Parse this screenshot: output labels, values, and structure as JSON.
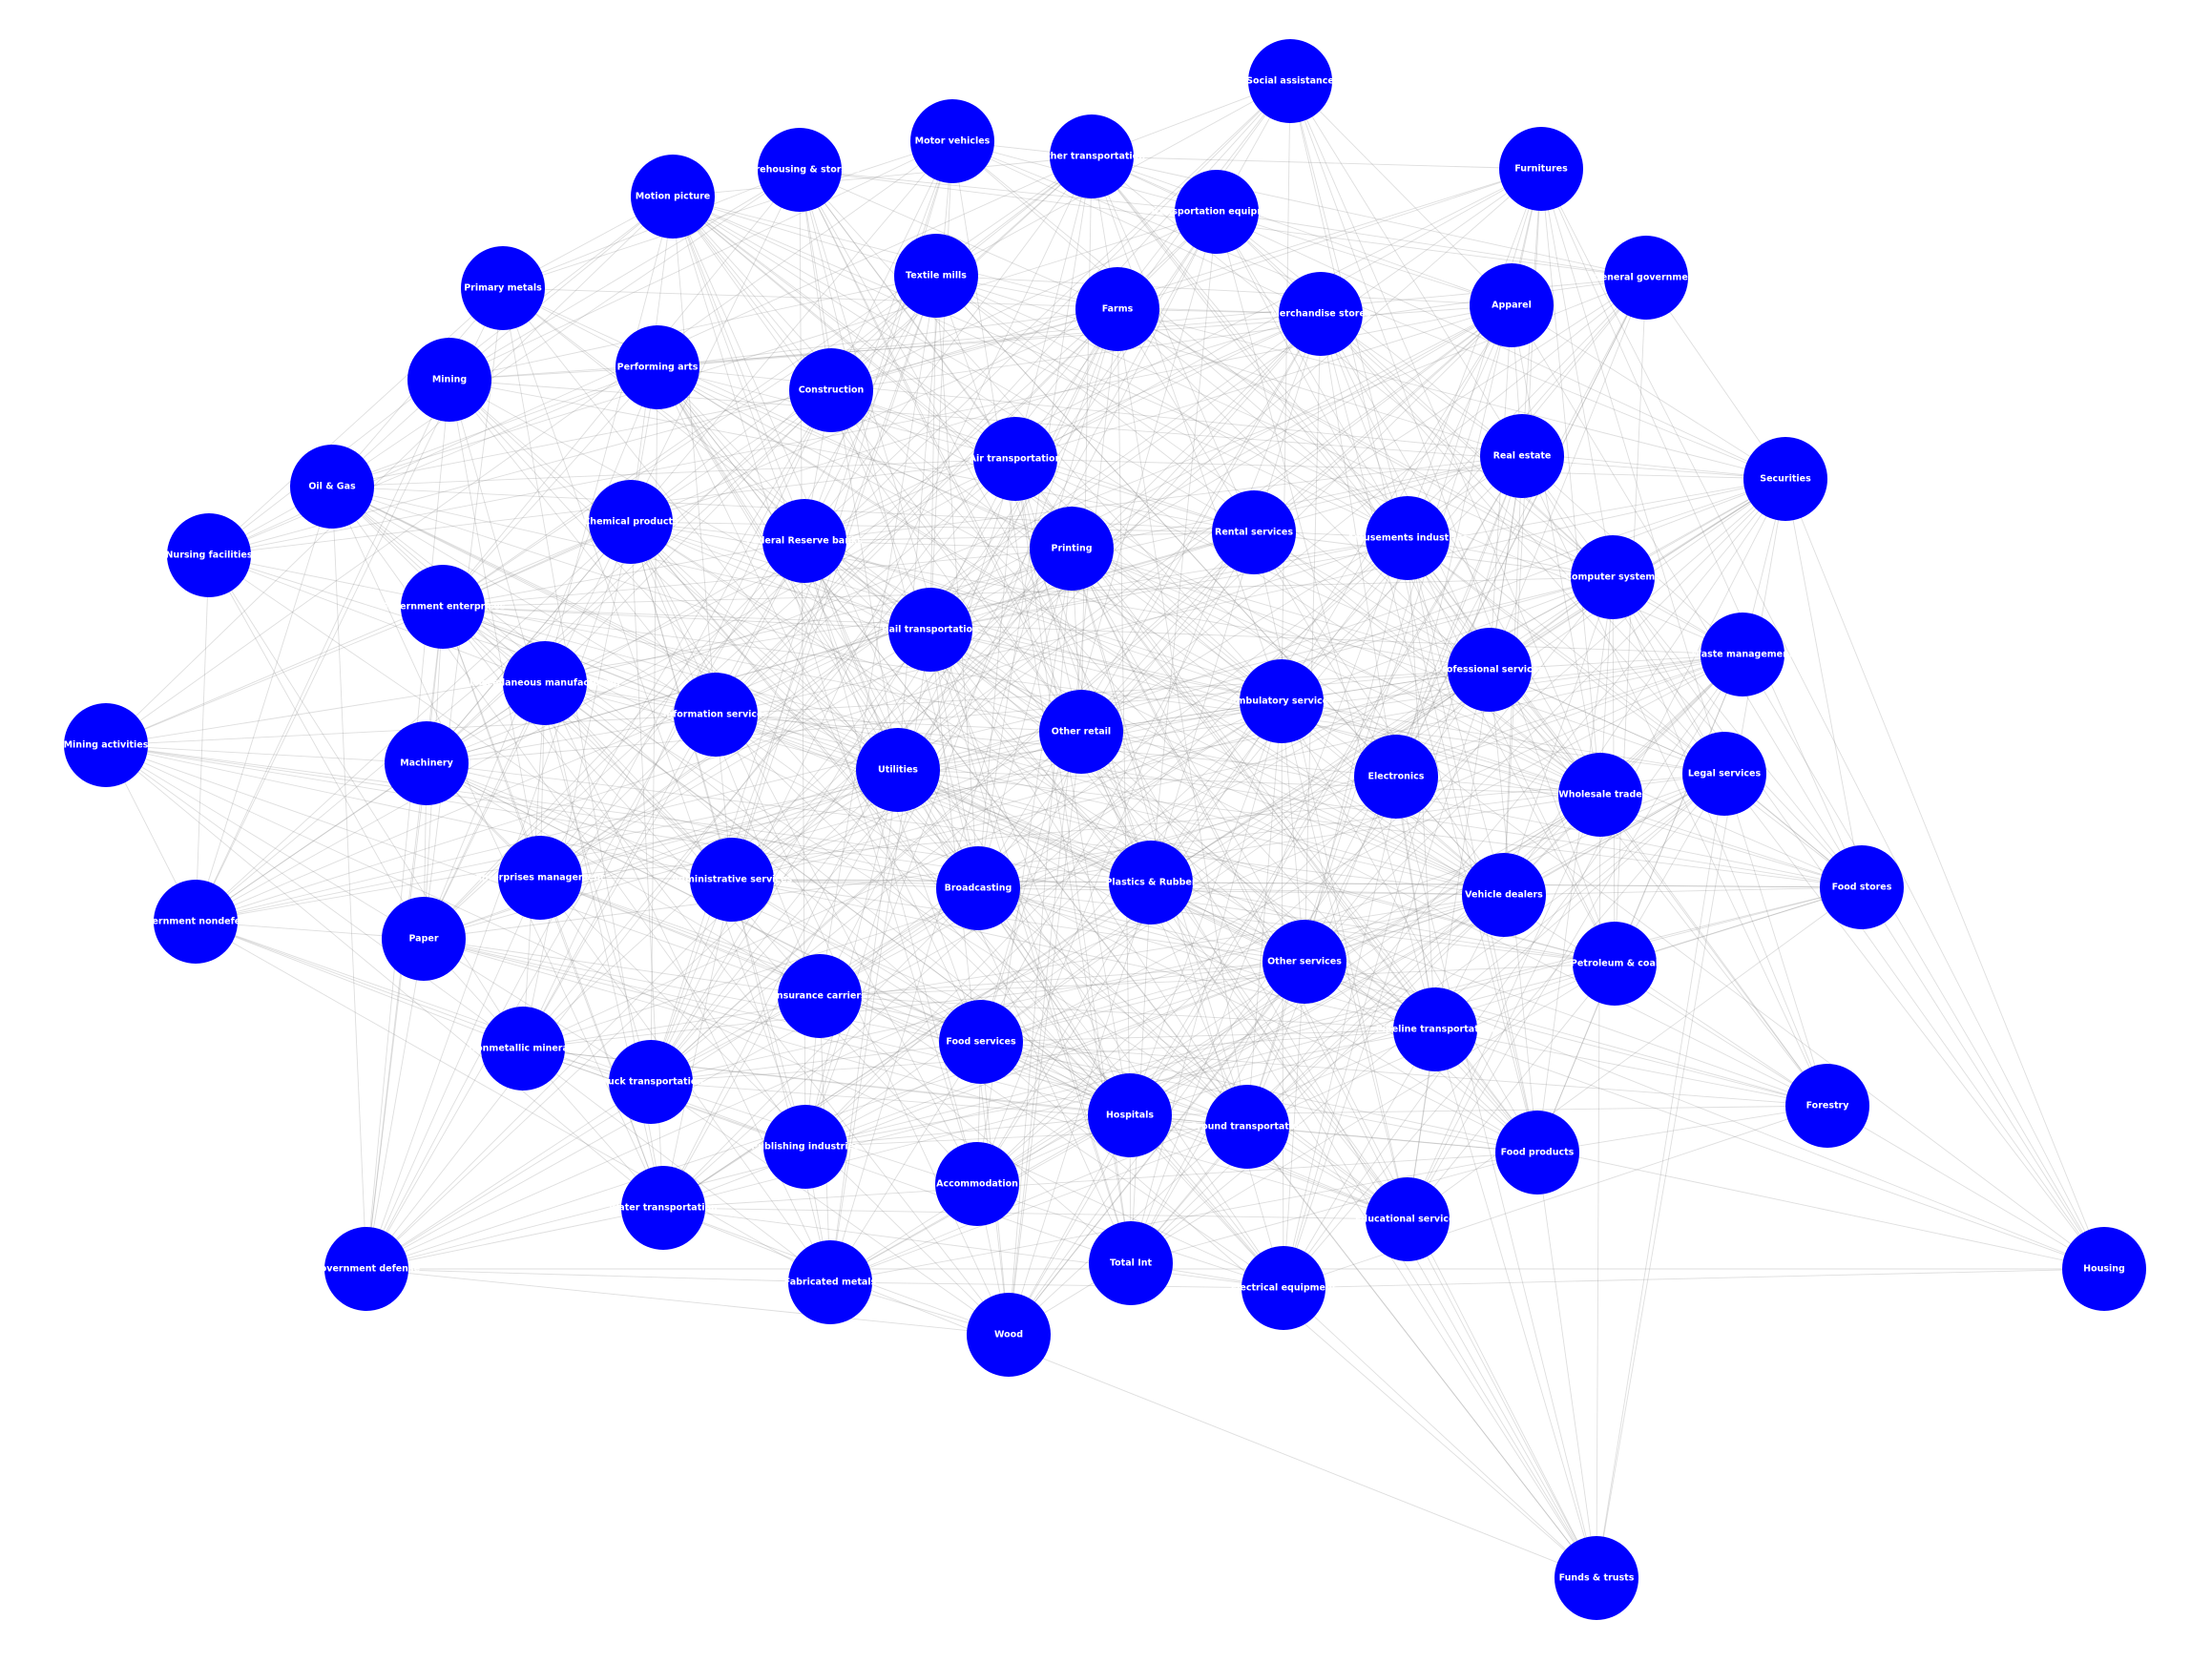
{
  "colors": {
    "node": "#0000ff",
    "label": "#ffffff",
    "edge": "#8a8a8a",
    "background": "#ffffff"
  },
  "nodes": [
    {
      "id": "social-assistance",
      "label": "Social assistance"
    },
    {
      "id": "motor-vehicles",
      "label": "Motor vehicles"
    },
    {
      "id": "other-transportation",
      "label": "Other transportation"
    },
    {
      "id": "warehousing-storage",
      "label": "Warehousing & storage"
    },
    {
      "id": "furnitures",
      "label": "Furnitures"
    },
    {
      "id": "motion-picture",
      "label": "Motion picture"
    },
    {
      "id": "transportation-equipment",
      "label": "Transportation equipment"
    },
    {
      "id": "textile-mills",
      "label": "Textile mills"
    },
    {
      "id": "general-government",
      "label": "General government"
    },
    {
      "id": "primary-metals",
      "label": "Primary metals"
    },
    {
      "id": "farms",
      "label": "Farms"
    },
    {
      "id": "merchandise-stores",
      "label": "Merchandise stores"
    },
    {
      "id": "apparel",
      "label": "Apparel"
    },
    {
      "id": "performing-arts",
      "label": "Performing arts"
    },
    {
      "id": "mining",
      "label": "Mining"
    },
    {
      "id": "construction",
      "label": "Construction"
    },
    {
      "id": "real-estate",
      "label": "Real estate"
    },
    {
      "id": "air-transportation",
      "label": "Air transportation"
    },
    {
      "id": "securities",
      "label": "Securities"
    },
    {
      "id": "oil-gas",
      "label": "Oil & Gas"
    },
    {
      "id": "chemical-products",
      "label": "Chemical products"
    },
    {
      "id": "federal-reserve-banks",
      "label": "Federal Reserve banks"
    },
    {
      "id": "printing",
      "label": "Printing"
    },
    {
      "id": "rental-services",
      "label": "Rental services"
    },
    {
      "id": "amusements-industries",
      "label": "Amusements industries"
    },
    {
      "id": "nursing-facilities",
      "label": "Nursing facilities"
    },
    {
      "id": "computer-systems",
      "label": "Computer systems"
    },
    {
      "id": "government-enterprises",
      "label": "Government enterprises"
    },
    {
      "id": "rail-transportation",
      "label": "Rail transportation"
    },
    {
      "id": "waste-management",
      "label": "Waste management"
    },
    {
      "id": "professional-services",
      "label": "Professional services"
    },
    {
      "id": "miscellaneous-manufacturing",
      "label": "Miscellaneous manufacturing"
    },
    {
      "id": "ambulatory-services",
      "label": "Ambulatory services"
    },
    {
      "id": "information-services",
      "label": "Information services"
    },
    {
      "id": "mining-activities",
      "label": "Mining activities"
    },
    {
      "id": "other-retail",
      "label": "Other retail"
    },
    {
      "id": "machinery",
      "label": "Machinery"
    },
    {
      "id": "utilities",
      "label": "Utilities"
    },
    {
      "id": "electronics",
      "label": "Electronics"
    },
    {
      "id": "legal-services",
      "label": "Legal services"
    },
    {
      "id": "wholesale-trade",
      "label": "Wholesale trade"
    },
    {
      "id": "enterprises-management",
      "label": "Enterprises management"
    },
    {
      "id": "administrative-services",
      "label": "Administrative services"
    },
    {
      "id": "plastics-rubber",
      "label": "Plastics & Rubber"
    },
    {
      "id": "broadcasting",
      "label": "Broadcasting"
    },
    {
      "id": "vehicle-dealers",
      "label": "Vehicle dealers"
    },
    {
      "id": "food-stores",
      "label": "Food stores"
    },
    {
      "id": "government-nondefense",
      "label": "Government nondefense"
    },
    {
      "id": "paper",
      "label": "Paper"
    },
    {
      "id": "other-services",
      "label": "Other services"
    },
    {
      "id": "petroleum-coal",
      "label": "Petroleum & coal"
    },
    {
      "id": "insurance-carriers",
      "label": "Insurance carriers"
    },
    {
      "id": "pipeline-transportation",
      "label": "Pipeline transportation"
    },
    {
      "id": "nonmetallic-minerals",
      "label": "Nonmetallic minerals"
    },
    {
      "id": "food-services",
      "label": "Food services"
    },
    {
      "id": "truck-transportation",
      "label": "Truck transportation"
    },
    {
      "id": "hospitals",
      "label": "Hospitals"
    },
    {
      "id": "forestry",
      "label": "Forestry"
    },
    {
      "id": "ground-transportation",
      "label": "Ground transportation"
    },
    {
      "id": "publishing-industries",
      "label": "Publishing industries"
    },
    {
      "id": "food-products",
      "label": "Food products"
    },
    {
      "id": "accommodation",
      "label": "Accommodation"
    },
    {
      "id": "water-transportation",
      "label": "Water transportation"
    },
    {
      "id": "educational-services",
      "label": "Educational services"
    },
    {
      "id": "government-defense",
      "label": "Government defense"
    },
    {
      "id": "total-int",
      "label": "Total Int"
    },
    {
      "id": "fabricated-metals",
      "label": "Fabricated metals"
    },
    {
      "id": "electrical-equipment",
      "label": "Electrical equipment"
    },
    {
      "id": "housing",
      "label": "Housing"
    },
    {
      "id": "wood",
      "label": "Wood"
    },
    {
      "id": "funds-trusts",
      "label": "Funds & trusts"
    }
  ]
}
